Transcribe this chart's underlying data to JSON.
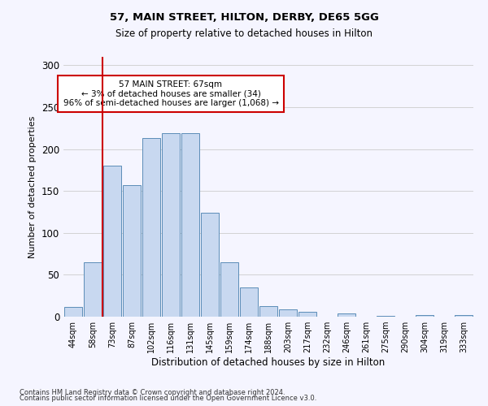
{
  "title1": "57, MAIN STREET, HILTON, DERBY, DE65 5GG",
  "title2": "Size of property relative to detached houses in Hilton",
  "xlabel": "Distribution of detached houses by size in Hilton",
  "ylabel": "Number of detached properties",
  "categories": [
    "44sqm",
    "58sqm",
    "73sqm",
    "87sqm",
    "102sqm",
    "116sqm",
    "131sqm",
    "145sqm",
    "159sqm",
    "174sqm",
    "188sqm",
    "203sqm",
    "217sqm",
    "232sqm",
    "246sqm",
    "261sqm",
    "275sqm",
    "290sqm",
    "304sqm",
    "319sqm",
    "333sqm"
  ],
  "values": [
    12,
    65,
    180,
    157,
    213,
    219,
    219,
    124,
    65,
    35,
    13,
    9,
    6,
    0,
    4,
    0,
    1,
    0,
    2,
    0,
    2
  ],
  "bar_color": "#c8d8f0",
  "bar_edge_color": "#5b8db8",
  "vline_x": 1.5,
  "vline_color": "#cc0000",
  "annotation_text": "57 MAIN STREET: 67sqm\n← 3% of detached houses are smaller (34)\n96% of semi-detached houses are larger (1,068) →",
  "annotation_box_color": "white",
  "annotation_box_edge": "#cc0000",
  "ylim": [
    0,
    310
  ],
  "yticks": [
    0,
    50,
    100,
    150,
    200,
    250,
    300
  ],
  "footer1": "Contains HM Land Registry data © Crown copyright and database right 2024.",
  "footer2": "Contains public sector information licensed under the Open Government Licence v3.0.",
  "bg_color": "#f5f5ff"
}
